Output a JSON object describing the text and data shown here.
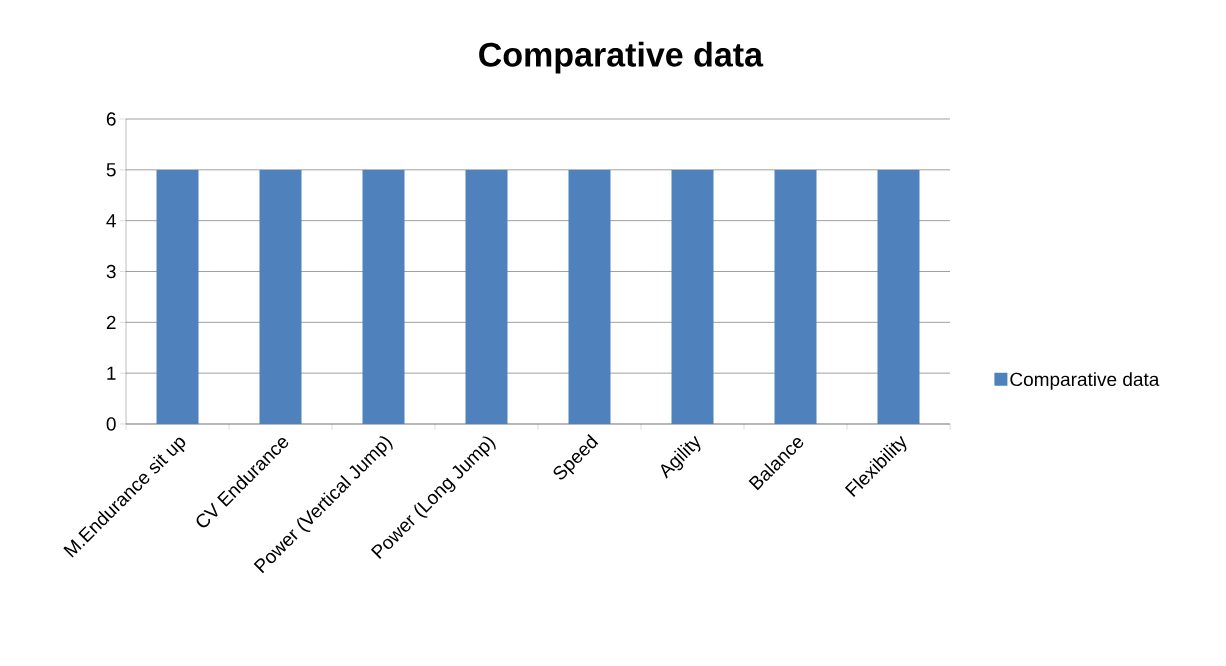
{
  "chart_data": {
    "type": "bar",
    "title": "Comparative data",
    "categories": [
      "M.Endurance sit up",
      "CV Endurance",
      "Power (Vertical Jump)",
      "Power (Long Jump)",
      "Speed",
      "Agility",
      "Balance",
      "Flexibility"
    ],
    "series": [
      {
        "name": "Comparative data",
        "color": "#4f81bd",
        "values": [
          5,
          5,
          5,
          5,
          5,
          5,
          5,
          5
        ]
      }
    ],
    "ylim": [
      0,
      6
    ],
    "yticks": [
      0,
      1,
      2,
      3,
      4,
      5,
      6
    ],
    "grid": "y",
    "legend": "right"
  }
}
